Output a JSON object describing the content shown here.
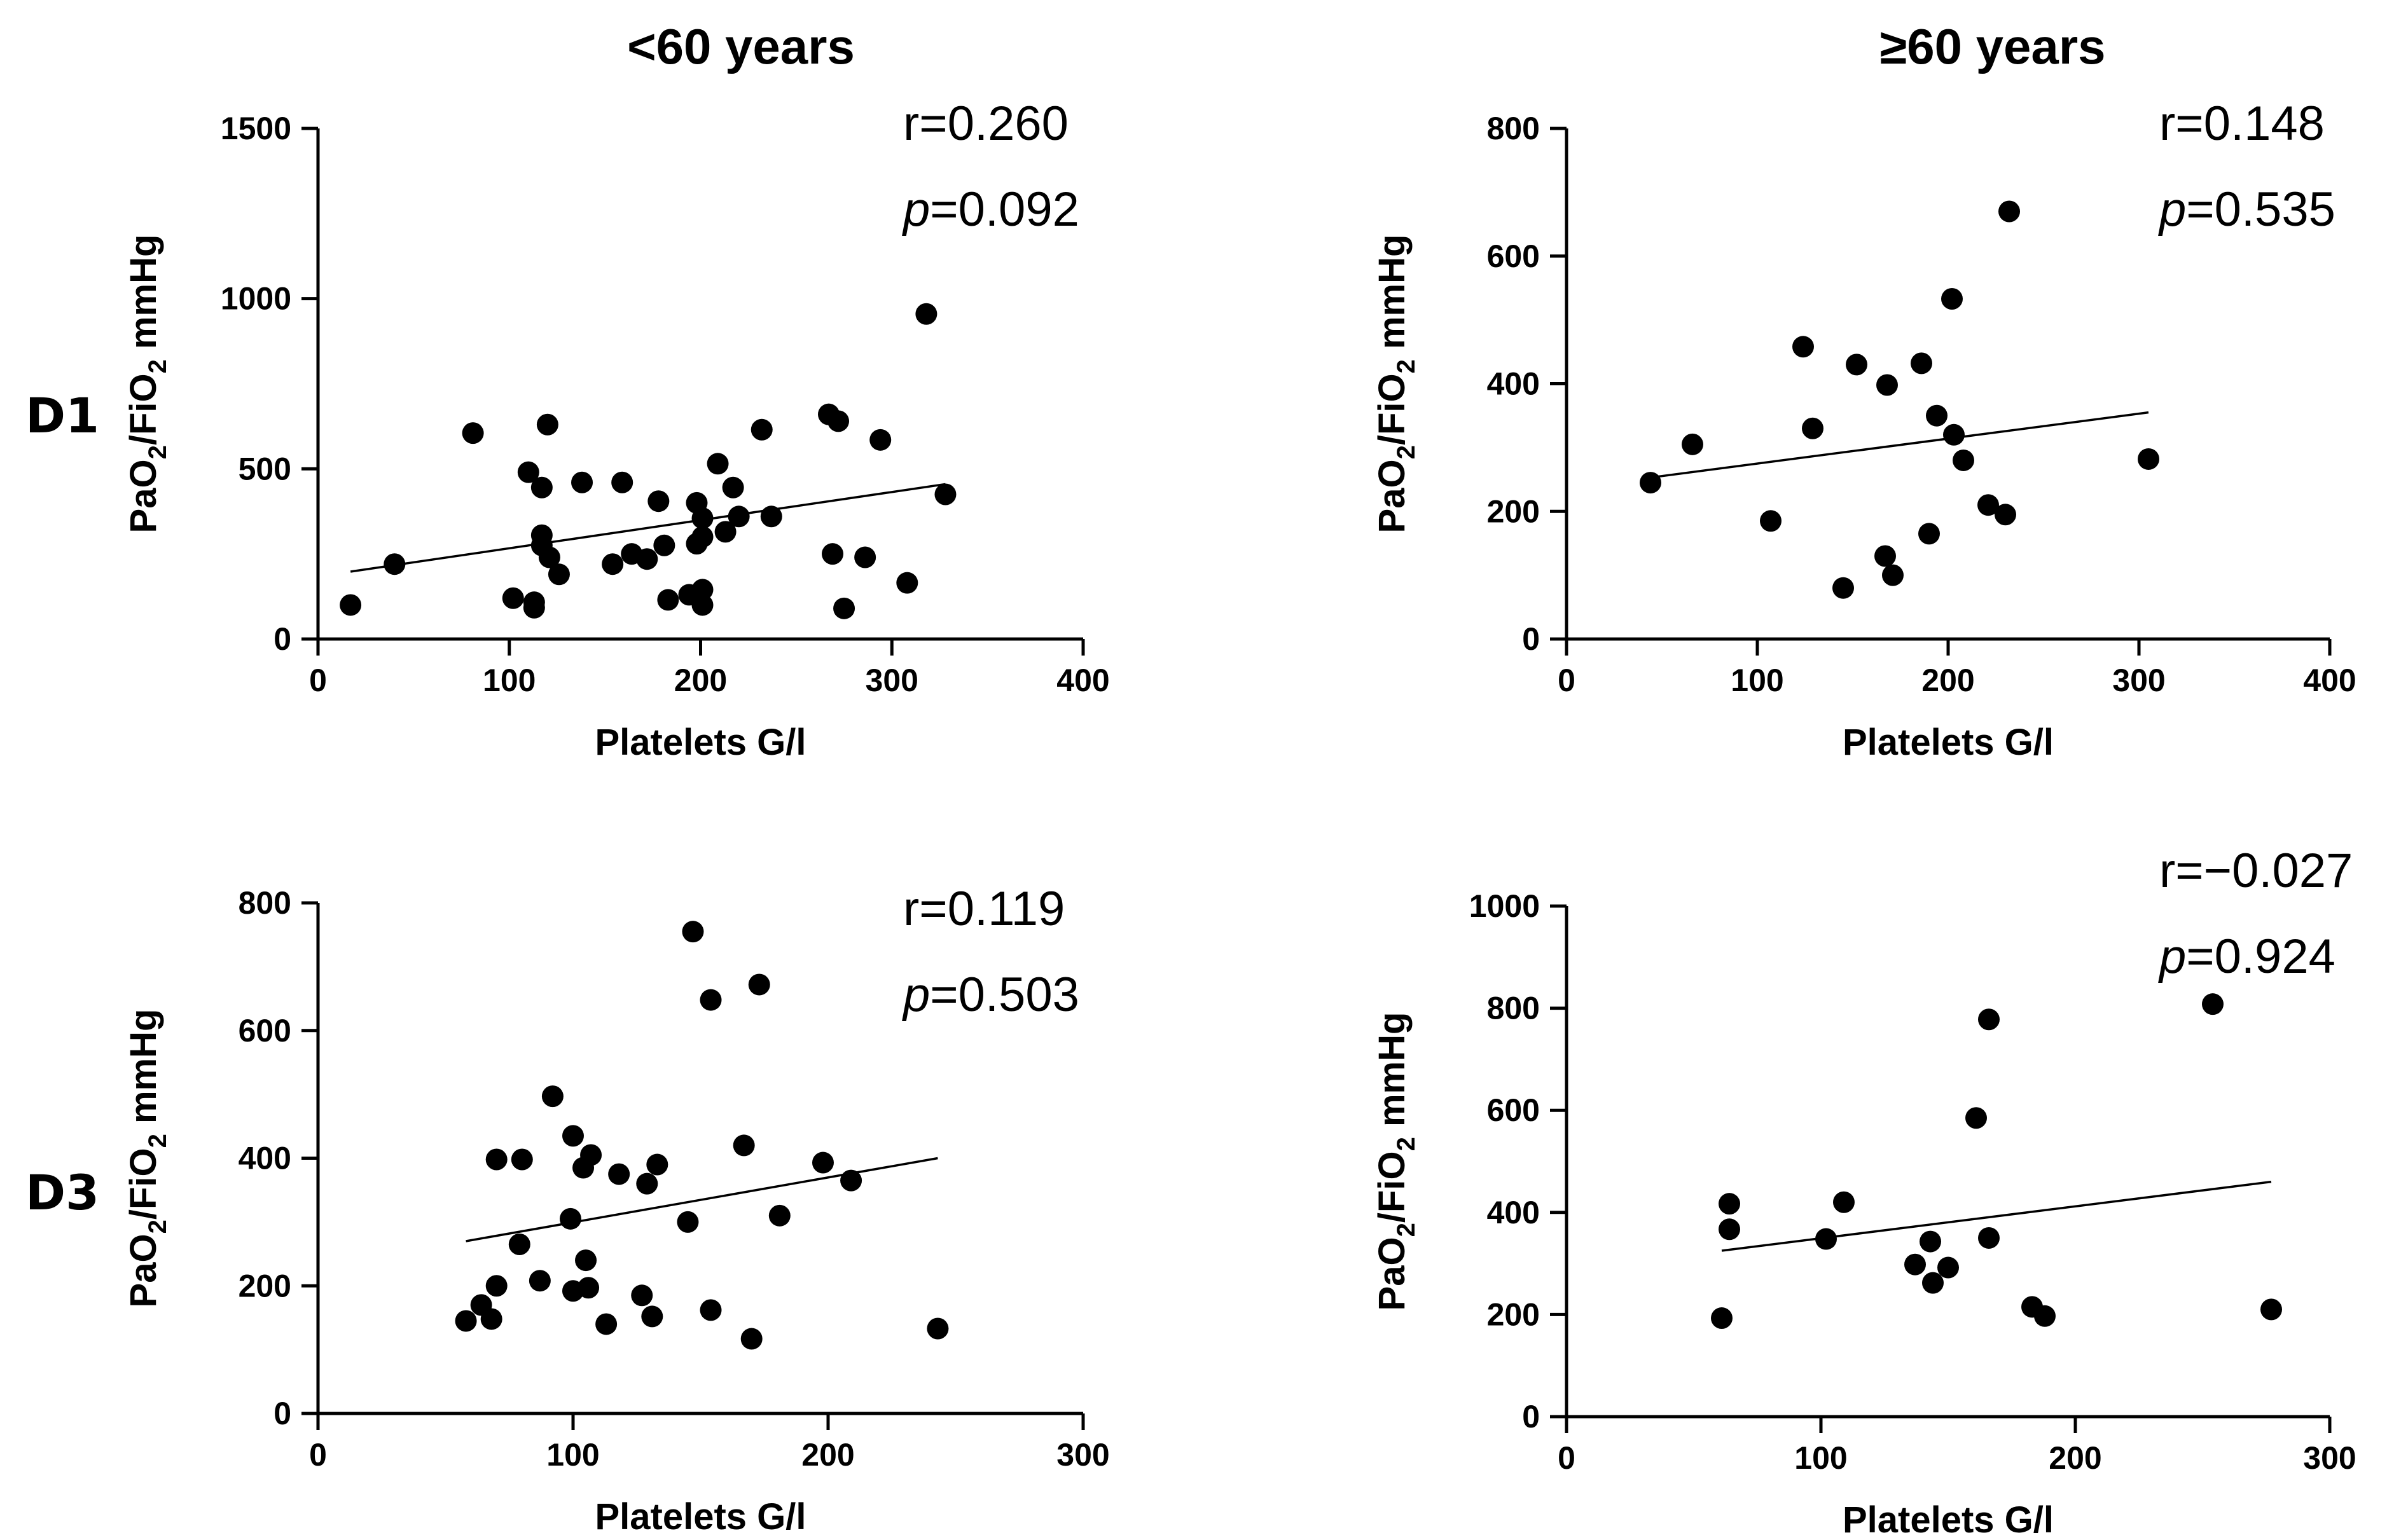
{
  "column_titles": [
    "<60 years",
    "≥60 years"
  ],
  "row_labels": [
    "D1",
    "D3"
  ],
  "chart_data": [
    {
      "type": "scatter",
      "row": "D1",
      "column": "<60 years",
      "xlabel": "Platelets G/l",
      "ylabel_parts": [
        "PaO",
        "2",
        "/FiO",
        "2",
        " mmHg"
      ],
      "xlim": [
        0,
        400
      ],
      "ylim": [
        0,
        1500
      ],
      "xticks": [
        0,
        100,
        200,
        300,
        400
      ],
      "yticks": [
        0,
        500,
        1000,
        1500
      ],
      "stat_r": "r=0.260",
      "stat_p_label": "p",
      "stat_p_value": "=0.092",
      "fit_line": {
        "x": [
          17,
          328
        ],
        "y": [
          198,
          455
        ]
      },
      "points": [
        [
          17,
          100
        ],
        [
          40,
          220
        ],
        [
          81,
          605
        ],
        [
          102,
          120
        ],
        [
          110,
          490
        ],
        [
          113,
          108
        ],
        [
          113,
          92
        ],
        [
          117,
          305
        ],
        [
          117,
          275
        ],
        [
          117,
          445
        ],
        [
          120,
          630
        ],
        [
          121,
          240
        ],
        [
          126,
          190
        ],
        [
          138,
          460
        ],
        [
          154,
          220
        ],
        [
          159,
          460
        ],
        [
          164,
          250
        ],
        [
          172,
          235
        ],
        [
          178,
          405
        ],
        [
          181,
          275
        ],
        [
          183,
          115
        ],
        [
          194,
          130
        ],
        [
          198,
          400
        ],
        [
          198,
          280
        ],
        [
          201,
          145
        ],
        [
          201,
          300
        ],
        [
          201,
          355
        ],
        [
          201,
          100
        ],
        [
          209,
          515
        ],
        [
          213,
          315
        ],
        [
          217,
          445
        ],
        [
          220,
          360
        ],
        [
          232,
          615
        ],
        [
          237,
          360
        ],
        [
          267,
          660
        ],
        [
          269,
          250
        ],
        [
          272,
          640
        ],
        [
          275,
          90
        ],
        [
          286,
          240
        ],
        [
          294,
          585
        ],
        [
          308,
          165
        ],
        [
          318,
          955
        ],
        [
          328,
          425
        ]
      ]
    },
    {
      "type": "scatter",
      "row": "D1",
      "column": "≥60 years",
      "xlabel": "Platelets G/l",
      "ylabel_parts": [
        "PaO",
        "2",
        "/FiO",
        "2",
        " mmHg"
      ],
      "xlim": [
        0,
        400
      ],
      "ylim": [
        0,
        800
      ],
      "xticks": [
        0,
        100,
        200,
        300,
        400
      ],
      "yticks": [
        0,
        200,
        400,
        600,
        800
      ],
      "stat_r": "r=0.148",
      "stat_p_label": "p",
      "stat_p_value": "=0.535",
      "fit_line": {
        "x": [
          44,
          305
        ],
        "y": [
          253,
          355
        ]
      },
      "points": [
        [
          44,
          245
        ],
        [
          66,
          305
        ],
        [
          107,
          185
        ],
        [
          124,
          458
        ],
        [
          129,
          330
        ],
        [
          145,
          80
        ],
        [
          152,
          430
        ],
        [
          167,
          130
        ],
        [
          168,
          398
        ],
        [
          171,
          100
        ],
        [
          186,
          432
        ],
        [
          190,
          165
        ],
        [
          194,
          350
        ],
        [
          202,
          533
        ],
        [
          203,
          320
        ],
        [
          208,
          280
        ],
        [
          221,
          210
        ],
        [
          230,
          195
        ],
        [
          232,
          670
        ],
        [
          305,
          282
        ]
      ]
    },
    {
      "type": "scatter",
      "row": "D3",
      "column": "<60 years",
      "xlabel": "Platelets G/l",
      "ylabel_parts": [
        "PaO",
        "2",
        "/FiO",
        "2",
        " mmHg"
      ],
      "xlim": [
        0,
        300
      ],
      "ylim": [
        0,
        800
      ],
      "xticks": [
        0,
        100,
        200,
        300
      ],
      "yticks": [
        0,
        200,
        400,
        600,
        800
      ],
      "stat_r": "r=0.119",
      "stat_p_label": "p",
      "stat_p_value": "=0.503",
      "fit_line": {
        "x": [
          58,
          243
        ],
        "y": [
          270,
          400
        ]
      },
      "points": [
        [
          58,
          145
        ],
        [
          64,
          170
        ],
        [
          68,
          148
        ],
        [
          70,
          200
        ],
        [
          70,
          398
        ],
        [
          79,
          265
        ],
        [
          80,
          398
        ],
        [
          87,
          208
        ],
        [
          92,
          497
        ],
        [
          99,
          305
        ],
        [
          100,
          435
        ],
        [
          100,
          192
        ],
        [
          104,
          385
        ],
        [
          105,
          240
        ],
        [
          106,
          197
        ],
        [
          107,
          405
        ],
        [
          113,
          140
        ],
        [
          118,
          375
        ],
        [
          127,
          185
        ],
        [
          129,
          360
        ],
        [
          131,
          152
        ],
        [
          133,
          390
        ],
        [
          145,
          300
        ],
        [
          147,
          755
        ],
        [
          154,
          648
        ],
        [
          154,
          162
        ],
        [
          167,
          420
        ],
        [
          170,
          117
        ],
        [
          173,
          672
        ],
        [
          181,
          310
        ],
        [
          198,
          393
        ],
        [
          209,
          365
        ],
        [
          243,
          133
        ]
      ]
    },
    {
      "type": "scatter",
      "row": "D3",
      "column": "≥60 years",
      "xlabel": "Platelets G/l",
      "ylabel_parts": [
        "PaO",
        "2",
        "/FiO",
        "2",
        " mmHg"
      ],
      "xlim": [
        0,
        300
      ],
      "ylim": [
        0,
        1000
      ],
      "xticks": [
        0,
        100,
        200,
        300
      ],
      "yticks": [
        0,
        200,
        400,
        600,
        800,
        1000
      ],
      "stat_r": "r=−0.027",
      "stat_p_label": "p",
      "stat_p_value": "=0.924",
      "fit_line": {
        "x": [
          61,
          277
        ],
        "y": [
          325,
          460
        ]
      },
      "points": [
        [
          61,
          193
        ],
        [
          64,
          417
        ],
        [
          64,
          367
        ],
        [
          102,
          348
        ],
        [
          109,
          420
        ],
        [
          137,
          298
        ],
        [
          143,
          343
        ],
        [
          144,
          262
        ],
        [
          150,
          292
        ],
        [
          161,
          585
        ],
        [
          166,
          778
        ],
        [
          166,
          350
        ],
        [
          183,
          215
        ],
        [
          188,
          197
        ],
        [
          254,
          808
        ],
        [
          277,
          210
        ]
      ]
    }
  ]
}
